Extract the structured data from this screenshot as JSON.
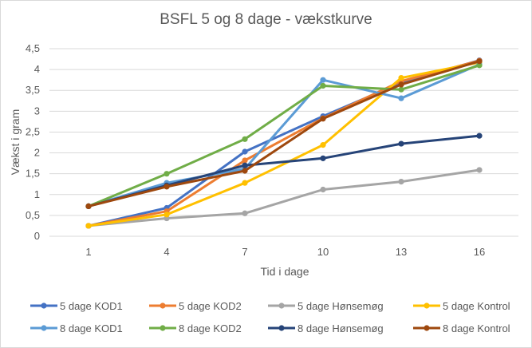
{
  "chart_data": {
    "type": "line",
    "title": "BSFL 5 og 8 dage - vækstkurve",
    "xlabel": "Tid i dage",
    "ylabel": "Vækst i gram",
    "categories": [
      "1",
      "4",
      "7",
      "10",
      "13",
      "16"
    ],
    "y_ticks": [
      "0",
      "0,5",
      "1",
      "1,5",
      "2",
      "2,5",
      "3",
      "3,5",
      "4",
      "4,5"
    ],
    "ylim": [
      0,
      4.5
    ],
    "grid": true,
    "legend_position": "bottom",
    "series": [
      {
        "name": "5 dage KOD1",
        "color": "#4472c4",
        "values": [
          0.25,
          0.68,
          2.03,
          2.88,
          3.68,
          4.22
        ]
      },
      {
        "name": "5 dage KOD2",
        "color": "#ed7d31",
        "values": [
          0.25,
          0.6,
          1.82,
          2.83,
          3.72,
          4.21
        ]
      },
      {
        "name": "5 dage Hønsemøg",
        "color": "#a5a5a5",
        "values": [
          0.25,
          0.43,
          0.55,
          1.12,
          1.31,
          1.59
        ]
      },
      {
        "name": "5 dage Kontrol",
        "color": "#ffc000",
        "values": [
          0.25,
          0.52,
          1.28,
          2.19,
          3.8,
          4.17
        ]
      },
      {
        "name": "8 dage KOD1",
        "color": "#5b9bd5",
        "values": [
          0.72,
          1.28,
          1.62,
          3.75,
          3.31,
          4.12
        ]
      },
      {
        "name": "8 dage KOD2",
        "color": "#70ad47",
        "values": [
          0.72,
          1.5,
          2.33,
          3.61,
          3.52,
          4.1
        ]
      },
      {
        "name": "8 dage Hønsemøg",
        "color": "#264478",
        "values": [
          0.72,
          1.22,
          1.7,
          1.87,
          2.22,
          2.41
        ]
      },
      {
        "name": "8 dage Kontrol",
        "color": "#9e480e",
        "values": [
          0.72,
          1.19,
          1.57,
          2.82,
          3.64,
          4.2
        ]
      }
    ]
  }
}
